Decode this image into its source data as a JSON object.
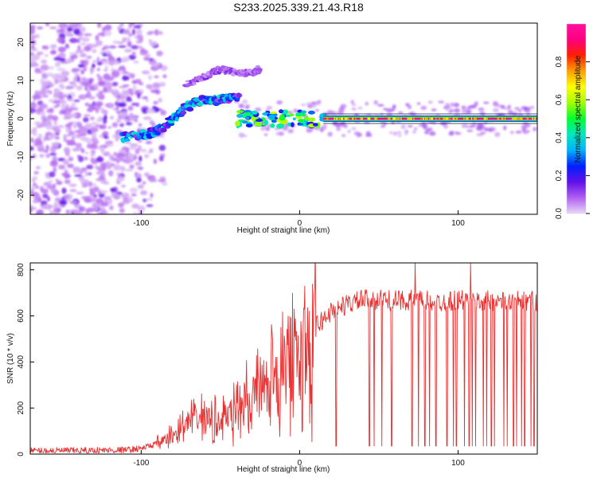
{
  "title": "S233.2025.339.21.43.R18",
  "chart_data": [
    {
      "id": "spectrogram",
      "type": "heatmap",
      "xlabel": "Height of straight line (km)",
      "ylabel": "Frequency (Hz)",
      "xlim": [
        -170,
        150
      ],
      "ylim": [
        -25,
        25
      ],
      "xticks": [
        -100,
        0,
        100
      ],
      "yticks": [
        -20,
        -10,
        0,
        10,
        20
      ],
      "xtick_labels": [
        "-100",
        "0",
        "100"
      ],
      "ytick_labels": [
        "-20",
        "-10",
        "0",
        "10",
        "20"
      ],
      "colorbar": {
        "label": "Normalized spectral amplitude",
        "range": [
          0,
          1
        ],
        "ticks": [
          0.0,
          0.2,
          0.4,
          0.6,
          0.8
        ],
        "tick_labels": [
          "0.0",
          "0.2",
          "0.4",
          "0.6",
          "0.8"
        ],
        "colors": [
          "#e8d8f8",
          "#b060f0",
          "#6010e8",
          "#0020ff",
          "#00b0ff",
          "#00e8c0",
          "#00ff30",
          "#a0ff00",
          "#ffff00",
          "#ffa000",
          "#ff2000",
          "#ff0080",
          "#ff10a0"
        ]
      },
      "features": [
        {
          "name": "scattered-noise",
          "x_range": [
            -170,
            -85
          ],
          "y_range": [
            -25,
            25
          ],
          "amplitude": 0.08
        },
        {
          "name": "rising-trace",
          "x": [
            -112,
            -95,
            -85,
            -72,
            -60,
            -48,
            -38
          ],
          "y": [
            -5,
            -4,
            -2,
            3,
            5,
            5,
            6
          ],
          "amplitude": 0.35
        },
        {
          "name": "upper-trace",
          "x": [
            -72,
            -60,
            -50,
            -40,
            -30,
            -25
          ],
          "y": [
            9,
            11,
            13,
            12,
            12,
            13
          ],
          "amplitude": 0.12
        },
        {
          "name": "stable-band",
          "x_range": [
            -40,
            150
          ],
          "y": 0,
          "amplitude": 0.95
        }
      ]
    },
    {
      "id": "snr",
      "type": "line",
      "xlabel": "Height of straight line (km)",
      "ylabel": "SNR (10 * v/v)",
      "xlim": [
        -170,
        150
      ],
      "ylim": [
        0,
        830
      ],
      "xticks": [
        -100,
        0,
        100
      ],
      "yticks": [
        0,
        200,
        400,
        600,
        800
      ],
      "xtick_labels": [
        "-100",
        "0",
        "100"
      ],
      "ytick_labels": [
        "0",
        "200",
        "400",
        "600",
        "800"
      ],
      "series": [
        {
          "name": "SNR",
          "color": "#e83030",
          "x": [
            -170,
            -140,
            -110,
            -100,
            -90,
            -80,
            -75,
            -70,
            -60,
            -50,
            -40,
            -30,
            -20,
            -10,
            0,
            10,
            20,
            30,
            40,
            50,
            60,
            70,
            80,
            90,
            100,
            110,
            120,
            130,
            140,
            150
          ],
          "y": [
            15,
            15,
            18,
            25,
            45,
            80,
            110,
            140,
            160,
            140,
            200,
            250,
            350,
            400,
            450,
            550,
            620,
            650,
            670,
            670,
            665,
            670,
            665,
            660,
            670,
            660,
            665,
            660,
            665,
            665
          ],
          "dropouts": [
            23,
            44,
            47,
            52,
            58,
            71,
            73,
            75,
            79,
            82,
            86,
            93,
            97,
            99,
            104,
            107,
            109,
            111,
            116,
            118,
            121,
            123,
            129,
            131,
            135,
            137,
            140,
            142,
            146,
            148
          ],
          "spikes": [
            [
              -60,
              230
            ],
            [
              -20,
              330
            ],
            [
              -10,
              300
            ],
            [
              73,
              830
            ],
            [
              108,
              830
            ]
          ]
        }
      ]
    }
  ]
}
